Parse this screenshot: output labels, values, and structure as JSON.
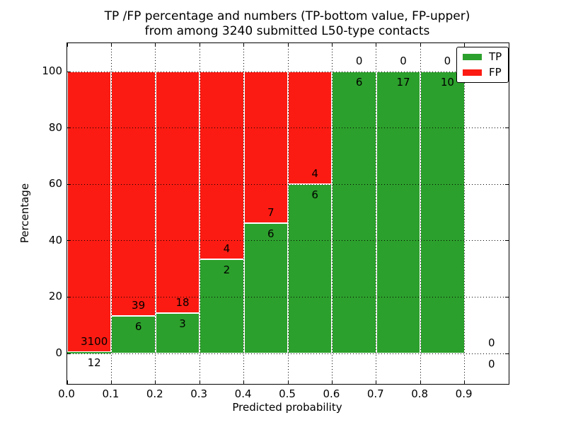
{
  "title": {
    "line1": "TP /FP percentage and numbers (TP-bottom value, FP-upper)",
    "line2": "from among 3240 submitted L50-type contacts"
  },
  "axes": {
    "xlabel": "Predicted probability",
    "ylabel": "Percentage"
  },
  "legend": {
    "items": [
      {
        "label": "TP",
        "color": "#2ca02c"
      },
      {
        "label": "FP",
        "color": "#fb1b12"
      }
    ]
  },
  "chart_data": {
    "type": "bar",
    "stacked": true,
    "title": "TP /FP percentage and numbers (TP-bottom value, FP-upper) from among 3240 submitted L50-type contacts",
    "xlabel": "Predicted probability",
    "ylabel": "Percentage",
    "xlim": [
      0.0,
      1.0
    ],
    "ylim": [
      -11,
      110
    ],
    "x_tick_labels": [
      "0.0",
      "0.1",
      "0.2",
      "0.3",
      "0.4",
      "0.5",
      "0.6",
      "0.7",
      "0.8",
      "0.9"
    ],
    "y_ticks": [
      0,
      20,
      40,
      60,
      80,
      100
    ],
    "grid": true,
    "legend_position": "upper right",
    "bin_width": 0.1,
    "series": [
      {
        "name": "TP",
        "color": "#2ca02c",
        "position": "bottom"
      },
      {
        "name": "FP",
        "color": "#fb1b12",
        "position": "top"
      }
    ],
    "bins": [
      {
        "x_start": 0.0,
        "x_end": 0.1,
        "tp_count": 12,
        "fp_count": 3100,
        "tp_pct": 0.39,
        "fp_pct": 99.61,
        "has_bar": true
      },
      {
        "x_start": 0.1,
        "x_end": 0.2,
        "tp_count": 6,
        "fp_count": 39,
        "tp_pct": 13.33,
        "fp_pct": 86.67,
        "has_bar": true
      },
      {
        "x_start": 0.2,
        "x_end": 0.3,
        "tp_count": 3,
        "fp_count": 18,
        "tp_pct": 14.29,
        "fp_pct": 85.71,
        "has_bar": true
      },
      {
        "x_start": 0.3,
        "x_end": 0.4,
        "tp_count": 2,
        "fp_count": 4,
        "tp_pct": 33.33,
        "fp_pct": 66.67,
        "has_bar": true
      },
      {
        "x_start": 0.4,
        "x_end": 0.5,
        "tp_count": 6,
        "fp_count": 7,
        "tp_pct": 46.15,
        "fp_pct": 53.85,
        "has_bar": true
      },
      {
        "x_start": 0.5,
        "x_end": 0.6,
        "tp_count": 6,
        "fp_count": 4,
        "tp_pct": 60.0,
        "fp_pct": 40.0,
        "has_bar": true
      },
      {
        "x_start": 0.6,
        "x_end": 0.7,
        "tp_count": 6,
        "fp_count": 0,
        "tp_pct": 100.0,
        "fp_pct": 0.0,
        "has_bar": true
      },
      {
        "x_start": 0.7,
        "x_end": 0.8,
        "tp_count": 17,
        "fp_count": 0,
        "tp_pct": 100.0,
        "fp_pct": 0.0,
        "has_bar": true
      },
      {
        "x_start": 0.8,
        "x_end": 0.9,
        "tp_count": 10,
        "fp_count": 0,
        "tp_pct": 100.0,
        "fp_pct": 0.0,
        "has_bar": true
      },
      {
        "x_start": 0.9,
        "x_end": 1.0,
        "tp_count": 0,
        "fp_count": 0,
        "tp_pct": 0.0,
        "fp_pct": 0.0,
        "has_bar": false
      }
    ]
  }
}
